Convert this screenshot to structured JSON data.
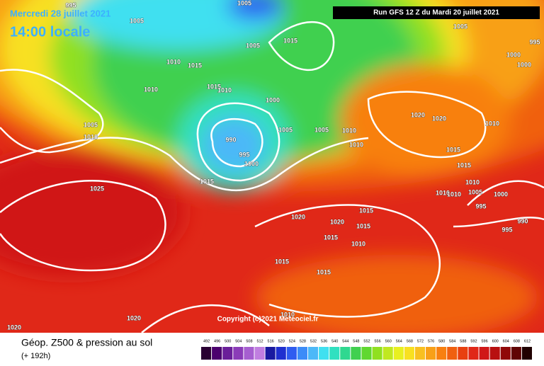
{
  "header": {
    "date": "Mercredi 28 juillet 2021",
    "time": "14:00 locale",
    "run": "Run GFS 12 Z du Mardi 20 juillet 2021"
  },
  "isobar_labels": [
    "995",
    "1005",
    "1005",
    "1005",
    "995",
    "1000",
    "1000",
    "1005",
    "1015",
    "1010",
    "1015",
    "1010",
    "1015",
    "1010",
    "1000",
    "1020",
    "1020",
    "1010",
    "1005",
    "1010",
    "1005",
    "1005",
    "1010",
    "990",
    "1010",
    "995",
    "1015",
    "1000",
    "1015",
    "1015",
    "1010",
    "1010",
    "1010",
    "1005",
    "1000",
    "1025",
    "995",
    "990",
    "1015",
    "1020",
    "1020",
    "1015",
    "995",
    "1015",
    "1010",
    "1015",
    "1015",
    "1010",
    "1020",
    "1020"
  ],
  "copyright": "Copyright (c)2021 Meteociel.fr",
  "legend": {
    "title": "Géop. Z500 & pression au sol",
    "lead": "(+ 192h)",
    "scale": {
      "values": [
        492,
        496,
        500,
        504,
        508,
        512,
        516,
        520,
        524,
        528,
        532,
        536,
        540,
        544,
        548,
        552,
        556,
        560,
        564,
        568,
        572,
        576,
        580,
        584,
        588,
        592,
        596,
        600,
        604,
        608,
        612
      ],
      "colors": [
        "#2a0033",
        "#4b006e",
        "#6a1f99",
        "#8b3cb8",
        "#a65fd0",
        "#c07ee0",
        "#1a1aa0",
        "#2030d0",
        "#2f5cf0",
        "#3c8cf8",
        "#4cb8f8",
        "#40e0f0",
        "#30e0c0",
        "#30d890",
        "#40d050",
        "#60d830",
        "#90e020",
        "#c0e820",
        "#e8f020",
        "#f8e020",
        "#f8c020",
        "#f8a018",
        "#f88010",
        "#f06010",
        "#e84010",
        "#e02818",
        "#d01818",
        "#b81010",
        "#900808",
        "#600404",
        "#200000"
      ]
    }
  }
}
